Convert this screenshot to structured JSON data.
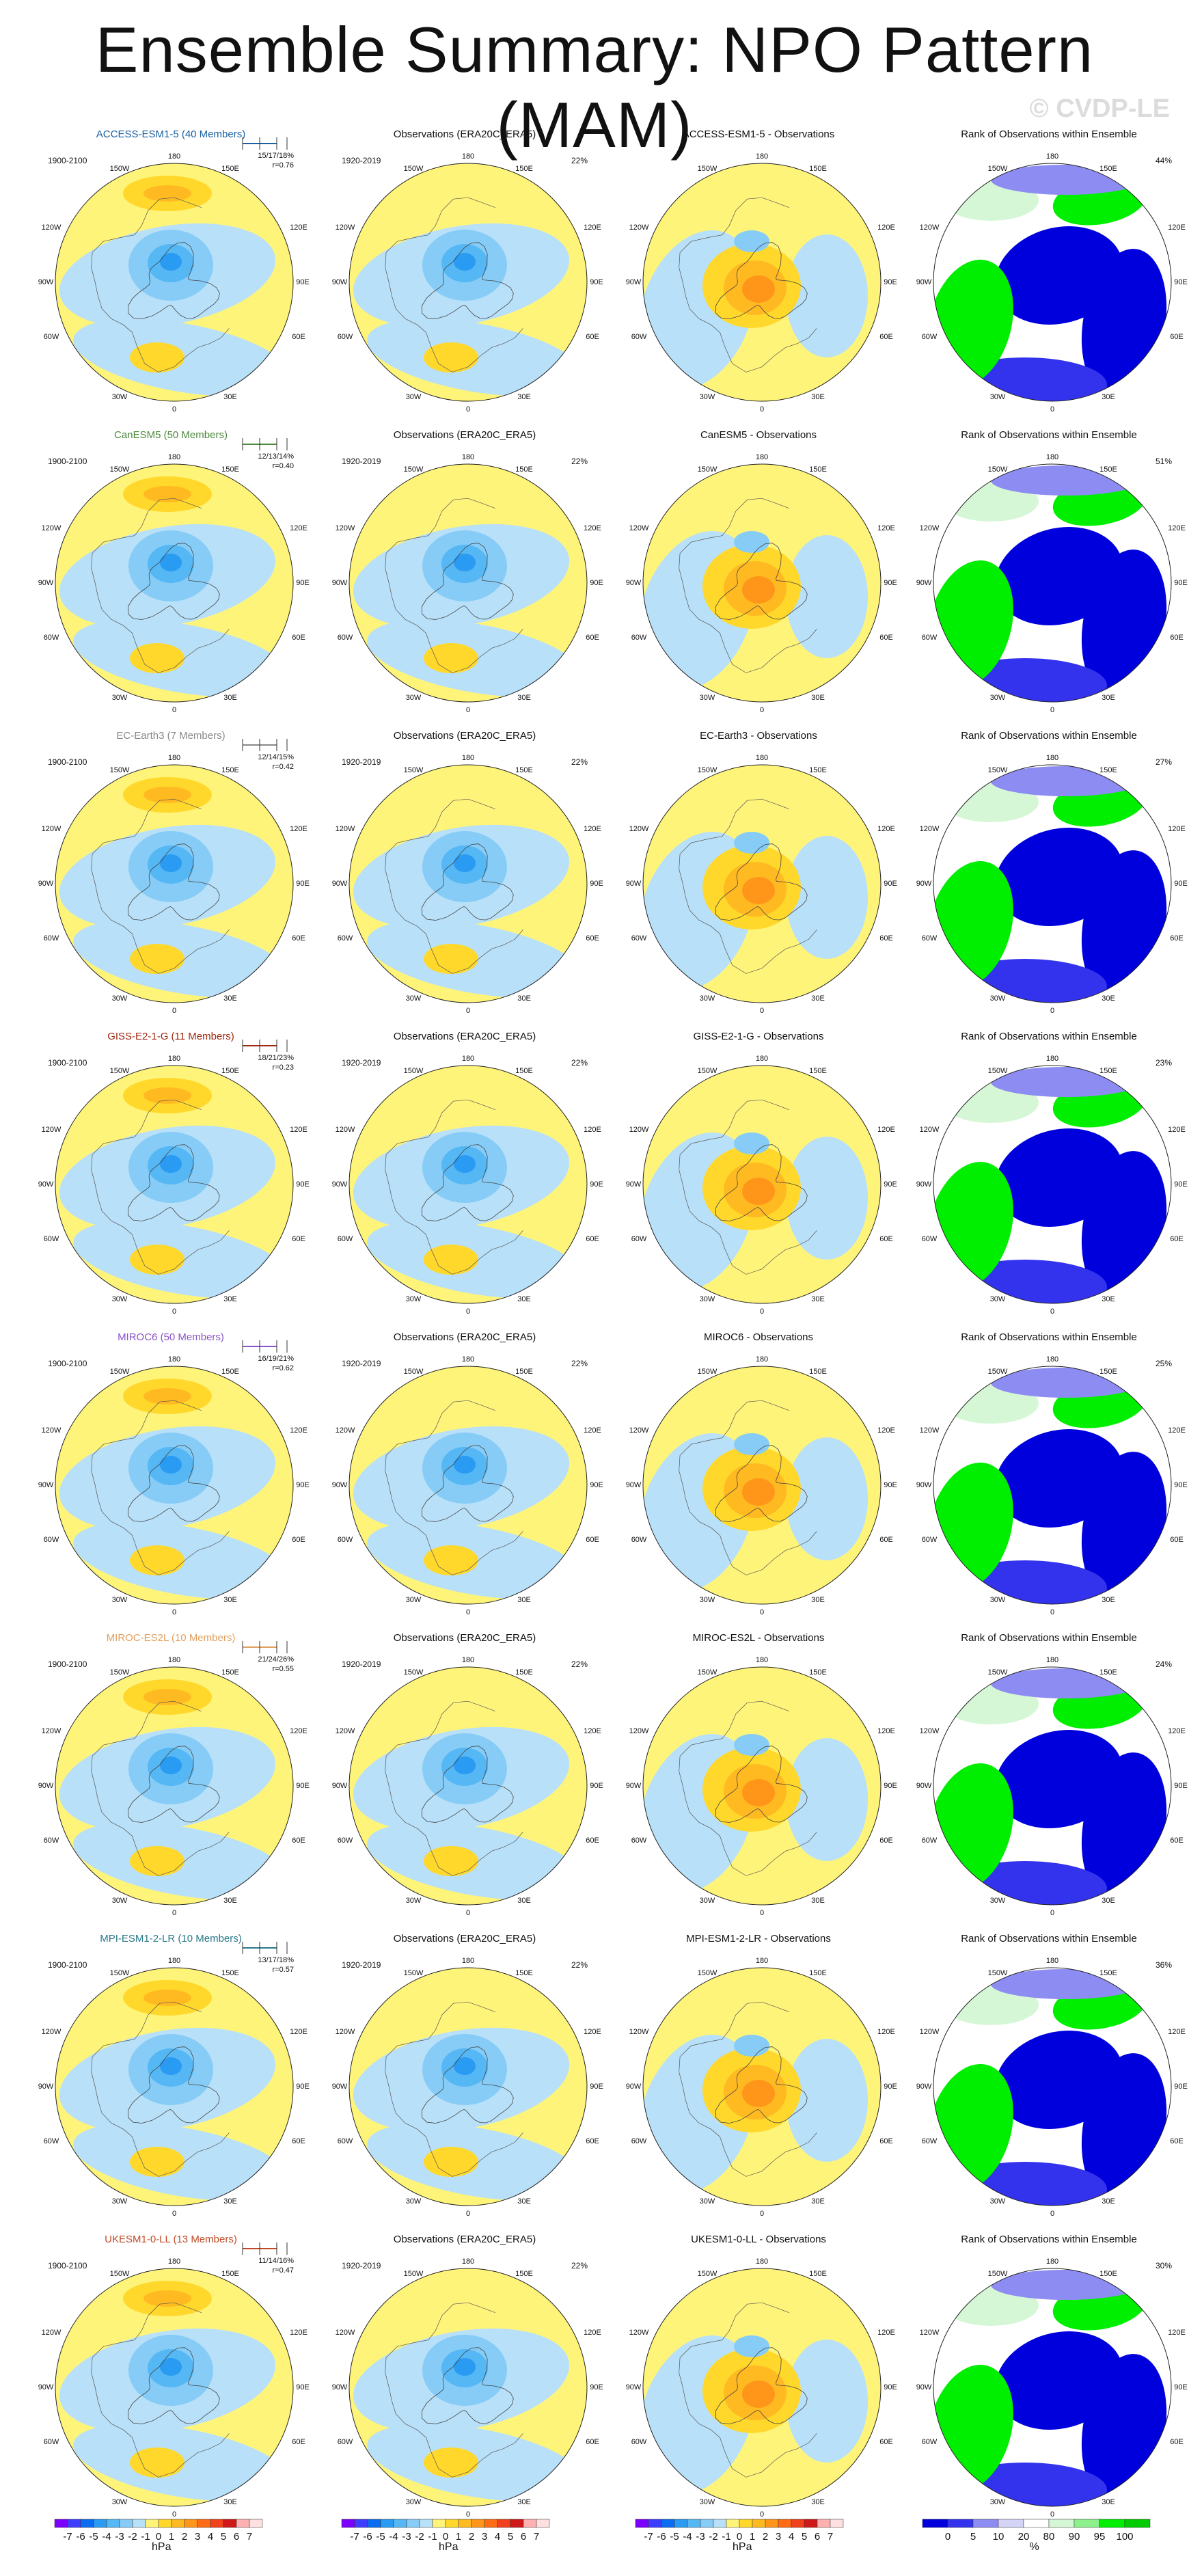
{
  "title": "Ensemble Summary: NPO Pattern (MAM)",
  "watermark": "© CVDP-LE",
  "colors": {
    "neg": [
      "#7c00ff",
      "#3d3dff",
      "#0a6cf0",
      "#2a9bf2",
      "#55b7f4",
      "#86ccf7",
      "#b8e0f8"
    ],
    "pos": [
      "#fff47a",
      "#ffd82b",
      "#ffba22",
      "#ff961a",
      "#ff6c15",
      "#f0401c",
      "#d01818",
      "#ffb0b0"
    ],
    "rank": [
      "#0000dd",
      "#3333ee",
      "#8c8cf2",
      "#d4d4f7",
      "#ffffff",
      "#d6f7d6",
      "#8cf08c",
      "#00ee00"
    ]
  },
  "column_titles": {
    "obs": "Observations (ERA20C_ERA5)",
    "rank": "Rank of Observations within Ensemble"
  },
  "periods": {
    "model": "1900-2100",
    "obs": "1920-2019"
  },
  "obs_pct": "22%",
  "longitude_labels": {
    "top": "180",
    "bottom": "0",
    "upper_left": "150W",
    "upper_right": "150E",
    "left_upper": "120W",
    "right_upper": "120E",
    "left_mid": "90W",
    "right_mid": "90E",
    "left_lower": "60W",
    "right_lower": "60E",
    "lower_left": "30W",
    "lower_right": "30E"
  },
  "rows": [
    {
      "model_title": "ACCESS-ESM1-5 (40 Members)",
      "model_color": "#1a5fa0",
      "diff_title": "ACCESS-ESM1-5 - Observations",
      "pcts": "15/17/18%",
      "r": "r=0.76",
      "rank_pct": "44%"
    },
    {
      "model_title": "CanESM5 (50 Members)",
      "model_color": "#4a8a3a",
      "diff_title": "CanESM5 - Observations",
      "pcts": "12/13/14%",
      "r": "r=0.40",
      "rank_pct": "51%"
    },
    {
      "model_title": "EC-Earth3 (7 Members)",
      "model_color": "#888888",
      "diff_title": "EC-Earth3 - Observations",
      "pcts": "12/14/15%",
      "r": "r=0.42",
      "rank_pct": "27%"
    },
    {
      "model_title": "GISS-E2-1-G (11 Members)",
      "model_color": "#a02810",
      "diff_title": "GISS-E2-1-G - Observations",
      "pcts": "18/21/23%",
      "r": "r=0.23",
      "rank_pct": "23%"
    },
    {
      "model_title": "MIROC6 (50 Members)",
      "model_color": "#8a55c8",
      "diff_title": "MIROC6 - Observations",
      "pcts": "16/19/21%",
      "r": "r=0.62",
      "rank_pct": "25%"
    },
    {
      "model_title": "MIROC-ES2L (10 Members)",
      "model_color": "#e0a060",
      "diff_title": "MIROC-ES2L - Observations",
      "pcts": "21/24/26%",
      "r": "r=0.55",
      "rank_pct": "24%"
    },
    {
      "model_title": "MPI-ESM1-2-LR (10 Members)",
      "model_color": "#2a7a8a",
      "diff_title": "MPI-ESM1-2-LR - Observations",
      "pcts": "13/17/18%",
      "r": "r=0.57",
      "rank_pct": "36%"
    },
    {
      "model_title": "UKESM1-0-LL (13 Members)",
      "model_color": "#c04a28",
      "diff_title": "UKESM1-0-LL - Observations",
      "pcts": "11/14/16%",
      "r": "r=0.47",
      "rank_pct": "30%"
    }
  ],
  "chart_data": [
    {
      "type": "heatmap",
      "description_of_panels": "polar stereographic maps of sea level pressure NPO pattern",
      "colorbar": {
        "levels": [
          "-7",
          "-6",
          "-5",
          "-4",
          "-3",
          "-2",
          "-1",
          "0",
          "1",
          "2",
          "3",
          "4",
          "5",
          "6",
          "7"
        ],
        "units": "hPa"
      }
    },
    {
      "type": "heatmap",
      "colorbar": {
        "levels": [
          "0",
          "5",
          "10",
          "20",
          "80",
          "90",
          "95",
          "100"
        ],
        "units": "%"
      }
    }
  ]
}
